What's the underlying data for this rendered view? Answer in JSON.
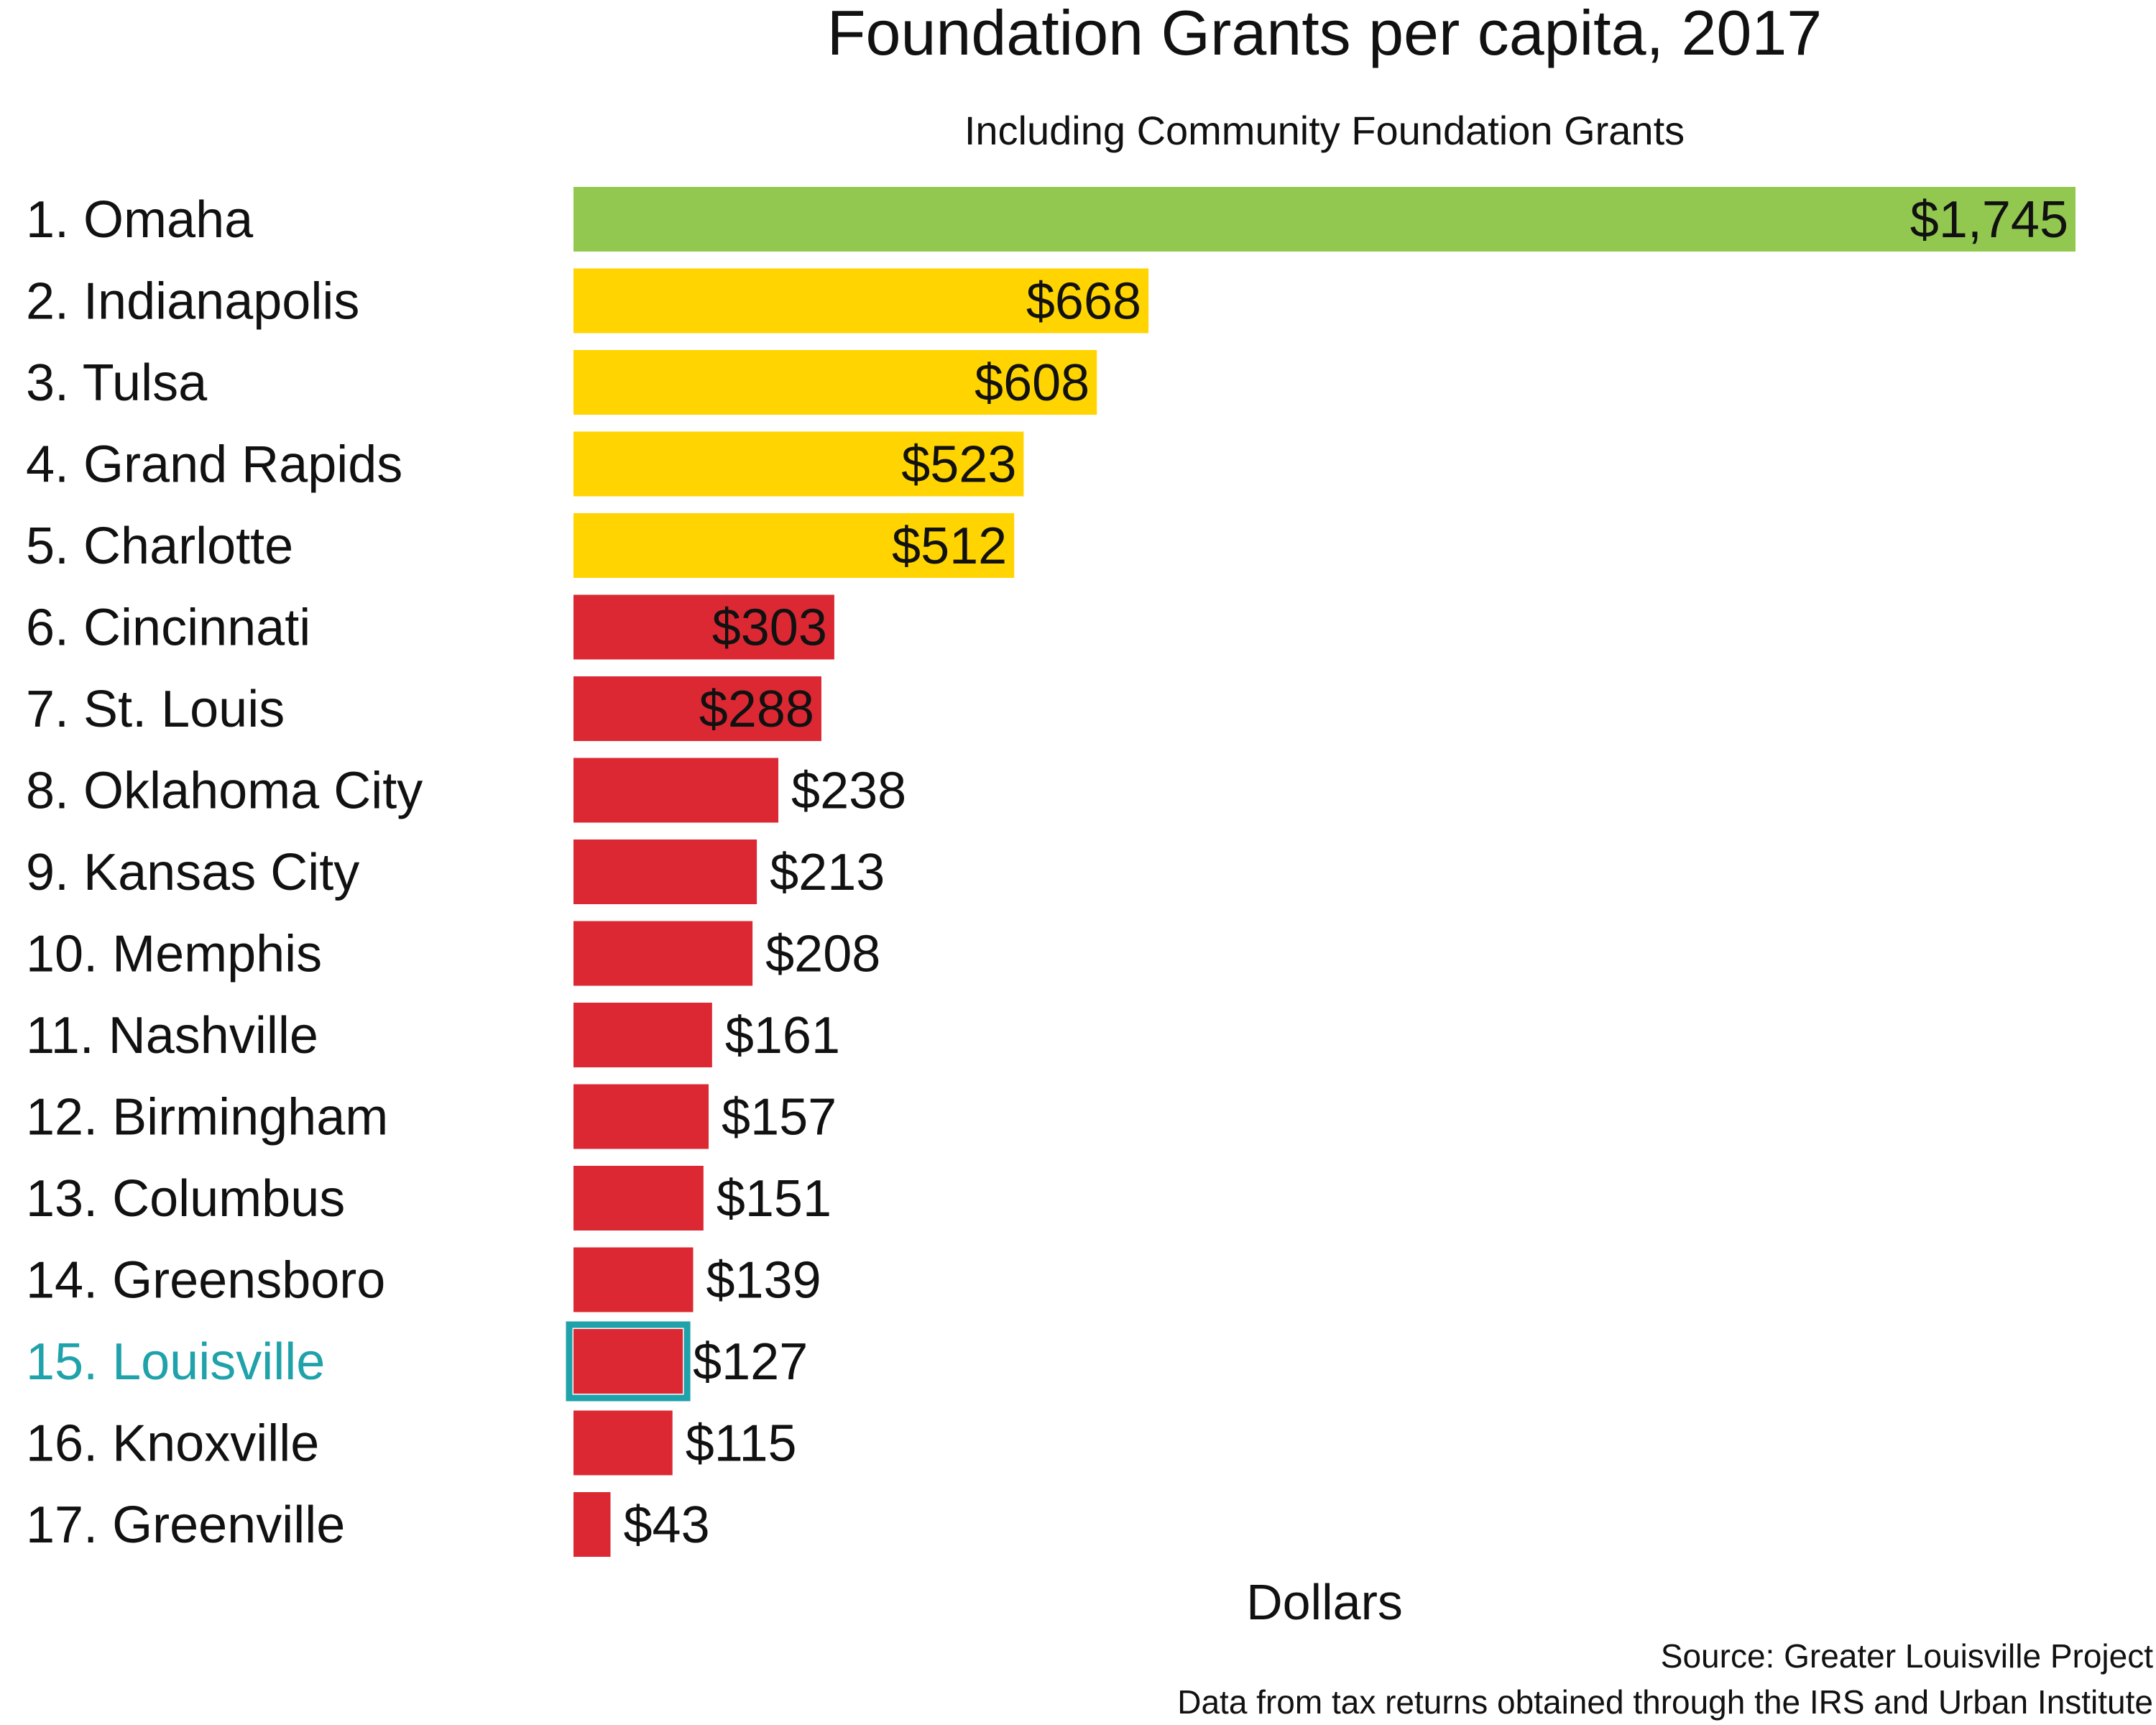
{
  "chart_data": {
    "type": "bar",
    "orientation": "horizontal",
    "title": "Foundation Grants per capita, 2017",
    "subtitle": "Including Community Foundation Grants",
    "xlabel": "Dollars",
    "ylabel": "",
    "xlim": [
      0,
      1745
    ],
    "grid": false,
    "categories": [
      "1. Omaha",
      "2. Indianapolis",
      "3. Tulsa",
      "4. Grand Rapids",
      "5. Charlotte",
      "6. Cincinnati",
      "7. St. Louis",
      "8. Oklahoma City",
      "9. Kansas City",
      "10. Memphis",
      "11. Nashville",
      "12. Birmingham",
      "13. Columbus",
      "14. Greensboro",
      "15. Louisville",
      "16. Knoxville",
      "17. Greenville"
    ],
    "values": [
      1745,
      668,
      608,
      523,
      512,
      303,
      288,
      238,
      213,
      208,
      161,
      157,
      151,
      139,
      127,
      115,
      43
    ],
    "value_labels": [
      "$1,745",
      "$668",
      "$608",
      "$523",
      "$512",
      "$303",
      "$288",
      "$238",
      "$213",
      "$208",
      "$161",
      "$157",
      "$151",
      "$139",
      "$127",
      "$115",
      "$43"
    ],
    "bar_colors": [
      "green",
      "yellow",
      "yellow",
      "yellow",
      "yellow",
      "red",
      "red",
      "red",
      "red",
      "red",
      "red",
      "red",
      "red",
      "red",
      "red",
      "red",
      "red"
    ],
    "highlight_category": "15. Louisville",
    "source": "Source: Greater Louisville Project",
    "note": "Data from tax returns obtained through the IRS and Urban Institute"
  },
  "colors": {
    "green": "#92c850",
    "yellow": "#ffd400",
    "red": "#dc2832",
    "highlight": "#1fa2aa",
    "text": "#111111"
  }
}
